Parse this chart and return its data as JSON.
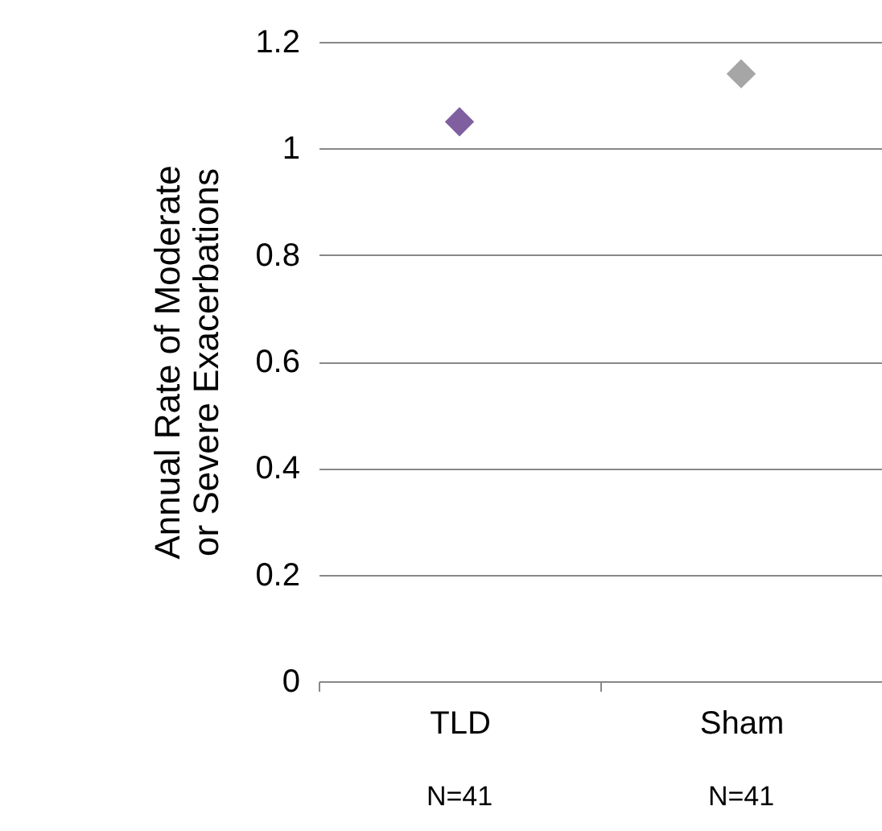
{
  "chart_data": {
    "type": "scatter",
    "ylabel": "Annual Rate of Moderate\nor Severe Exacerbations",
    "categories": [
      "TLD",
      "Sham"
    ],
    "values": [
      1.05,
      1.14
    ],
    "colors": [
      "#7f5fa0",
      "#a6a6a6"
    ],
    "ylim": [
      0,
      1.2
    ],
    "yticks": [
      0,
      0.2,
      0.4,
      0.6,
      0.8,
      1,
      1.2
    ],
    "grid": "y",
    "marker": "diamond",
    "annotations": [
      "N=41",
      "N=41"
    ]
  }
}
